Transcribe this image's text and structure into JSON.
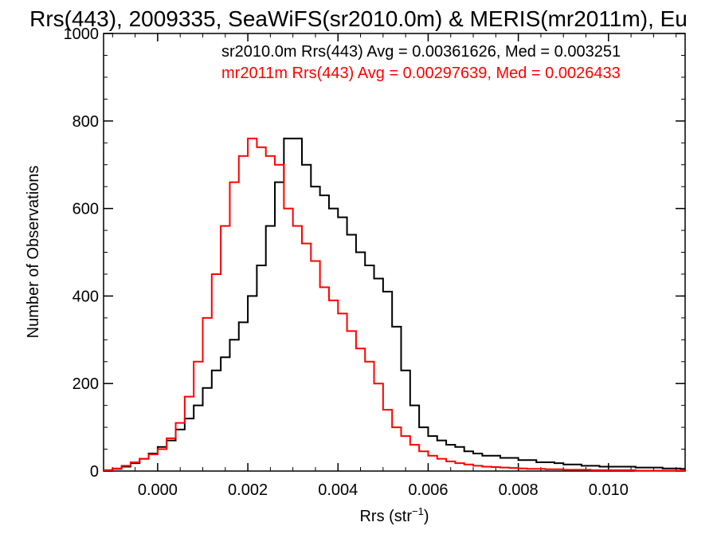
{
  "chart_data": {
    "type": "line",
    "title": "Rrs(443), 2009335, SeaWiFS(sr2010.0m) & MERIS(mr2011m), Eu",
    "xlabel_main": "Rrs (str",
    "xlabel_sup": "−1",
    "xlabel_close": ")",
    "ylabel": "Number of Observations",
    "xlim": [
      -0.0012,
      0.0117
    ],
    "ylim": [
      0,
      1000
    ],
    "x_ticks": [
      0.0,
      0.002,
      0.004,
      0.006,
      0.008,
      0.01
    ],
    "x_tick_labels": [
      "0.000",
      "0.002",
      "0.004",
      "0.006",
      "0.008",
      "0.010"
    ],
    "y_ticks": [
      0,
      200,
      400,
      600,
      800,
      1000
    ],
    "y_tick_labels": [
      "0",
      "200",
      "400",
      "600",
      "800",
      "1000"
    ],
    "grid": false,
    "style": "histogram-step",
    "annotations": [
      {
        "text": "sr2010.0m Rrs(443) Avg = 0.00361626, Med = 0.003251",
        "color": "#000000"
      },
      {
        "text": "mr2011m Rrs(443) Avg = 0.00297639, Med = 0.0026433",
        "color": "#ff0000"
      }
    ],
    "series": [
      {
        "color": "#000000",
        "x": [
          -0.0012,
          -0.001,
          -0.0008,
          -0.0006,
          -0.0004,
          -0.0002,
          0.0,
          0.0002,
          0.0004,
          0.0006,
          0.0008,
          0.001,
          0.0012,
          0.0014,
          0.0016,
          0.0018,
          0.002,
          0.0022,
          0.0024,
          0.0026,
          0.0028,
          0.003,
          0.0032,
          0.0034,
          0.0036,
          0.0038,
          0.004,
          0.0042,
          0.0044,
          0.0046,
          0.0048,
          0.005,
          0.0052,
          0.0054,
          0.0056,
          0.0058,
          0.006,
          0.0062,
          0.0064,
          0.0066,
          0.0068,
          0.007,
          0.0072,
          0.0074,
          0.0076,
          0.0078,
          0.008,
          0.0082,
          0.0084,
          0.0086,
          0.0088,
          0.009,
          0.0092,
          0.0094,
          0.0096,
          0.0098,
          0.01,
          0.0102,
          0.0104,
          0.0106,
          0.0108,
          0.011,
          0.0112,
          0.0114,
          0.0116
        ],
        "values": [
          2,
          5,
          10,
          18,
          28,
          40,
          55,
          70,
          95,
          120,
          150,
          190,
          230,
          260,
          300,
          340,
          400,
          470,
          560,
          660,
          760,
          760,
          700,
          650,
          630,
          600,
          580,
          540,
          500,
          470,
          440,
          410,
          330,
          230,
          150,
          100,
          80,
          70,
          60,
          55,
          45,
          40,
          35,
          35,
          30,
          30,
          25,
          25,
          20,
          20,
          18,
          15,
          15,
          12,
          12,
          10,
          10,
          10,
          10,
          8,
          8,
          8,
          6,
          6,
          5
        ]
      },
      {
        "color": "#ff0000",
        "x": [
          -0.0012,
          -0.001,
          -0.0008,
          -0.0006,
          -0.0004,
          -0.0002,
          0.0,
          0.0002,
          0.0004,
          0.0006,
          0.0008,
          0.001,
          0.0012,
          0.0014,
          0.0016,
          0.0018,
          0.002,
          0.0022,
          0.0024,
          0.0026,
          0.0028,
          0.003,
          0.0032,
          0.0034,
          0.0036,
          0.0038,
          0.004,
          0.0042,
          0.0044,
          0.0046,
          0.0048,
          0.005,
          0.0052,
          0.0054,
          0.0056,
          0.0058,
          0.006,
          0.0062,
          0.0064,
          0.0066,
          0.0068,
          0.007,
          0.0072,
          0.0074,
          0.0076,
          0.0078,
          0.008,
          0.0082,
          0.0084,
          0.0086,
          0.0088,
          0.009,
          0.0092,
          0.0094,
          0.0096,
          0.0098,
          0.01,
          0.0102,
          0.0104,
          0.0106,
          0.0108,
          0.011,
          0.0112,
          0.0114,
          0.0116
        ],
        "values": [
          2,
          6,
          12,
          20,
          28,
          38,
          50,
          75,
          110,
          170,
          250,
          350,
          450,
          560,
          660,
          720,
          760,
          740,
          720,
          700,
          600,
          560,
          520,
          480,
          420,
          390,
          360,
          320,
          280,
          250,
          200,
          140,
          100,
          80,
          60,
          45,
          35,
          28,
          22,
          18,
          15,
          12,
          10,
          9,
          8,
          7,
          6,
          5,
          5,
          4,
          4,
          3,
          3,
          3,
          2,
          2,
          2,
          2,
          2,
          1,
          1,
          1,
          1,
          1,
          1
        ]
      }
    ]
  }
}
